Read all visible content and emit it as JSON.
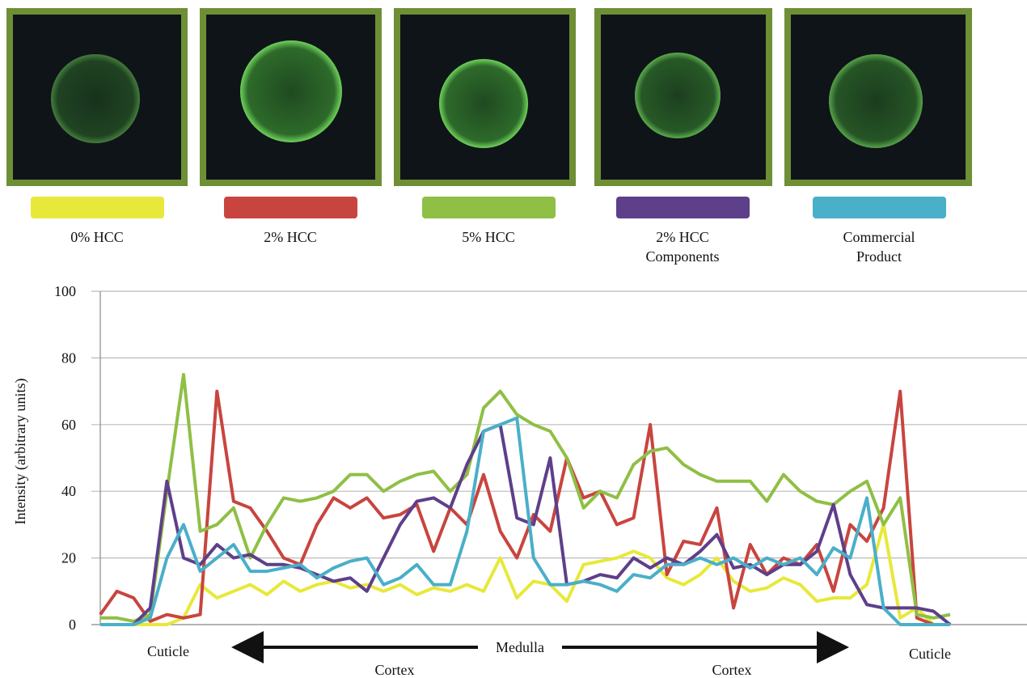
{
  "chart_data": {
    "type": "line",
    "y_label": "Intensity (arbitrary units)",
    "ylim": [
      0,
      100
    ],
    "yticks": [
      0,
      20,
      40,
      60,
      80,
      100
    ],
    "grid": true,
    "annotations": [
      "Cuticle",
      "Medulla",
      "Cortex",
      "Cortex",
      "Cuticle"
    ],
    "series": [
      {
        "name": "0% HCC",
        "color": "#e8e83a",
        "values": [
          0,
          0,
          0,
          0,
          0,
          2,
          12,
          8,
          10,
          12,
          9,
          13,
          10,
          12,
          13,
          11,
          12,
          10,
          12,
          9,
          11,
          10,
          12,
          10,
          20,
          8,
          13,
          12,
          7,
          18,
          19,
          20,
          22,
          20,
          14,
          12,
          15,
          20,
          13,
          10,
          11,
          14,
          12,
          7,
          8,
          8,
          12,
          30,
          2,
          5,
          0,
          0
        ]
      },
      {
        "name": "2% HCC",
        "color": "#c8453f",
        "values": [
          3,
          10,
          8,
          1,
          3,
          2,
          3,
          70,
          37,
          35,
          28,
          20,
          18,
          30,
          38,
          35,
          38,
          32,
          33,
          36,
          22,
          35,
          30,
          45,
          28,
          20,
          33,
          28,
          50,
          38,
          40,
          30,
          32,
          60,
          15,
          25,
          24,
          35,
          5,
          24,
          15,
          20,
          18,
          24,
          10,
          30,
          25,
          35,
          70,
          2,
          0,
          0
        ]
      },
      {
        "name": "5% HCC",
        "color": "#8fbf45",
        "values": [
          2,
          2,
          1,
          3,
          40,
          75,
          28,
          30,
          35,
          20,
          30,
          38,
          37,
          38,
          40,
          45,
          45,
          40,
          43,
          45,
          46,
          40,
          45,
          65,
          70,
          63,
          60,
          58,
          50,
          35,
          40,
          38,
          48,
          52,
          53,
          48,
          45,
          43,
          43,
          43,
          37,
          45,
          40,
          37,
          36,
          40,
          43,
          30,
          38,
          3,
          2,
          3
        ]
      },
      {
        "name": "2% HCC Components",
        "color": "#5e3f8a",
        "values": [
          0,
          0,
          0,
          5,
          43,
          20,
          18,
          24,
          20,
          21,
          18,
          18,
          17,
          15,
          13,
          14,
          10,
          20,
          30,
          37,
          38,
          35,
          48,
          58,
          60,
          32,
          30,
          50,
          12,
          13,
          15,
          14,
          20,
          17,
          20,
          18,
          22,
          27,
          17,
          18,
          15,
          18,
          18,
          22,
          36,
          15,
          6,
          5,
          5,
          5,
          4,
          0
        ]
      },
      {
        "name": "Commercial Product",
        "color": "#4aafc8",
        "values": [
          0,
          0,
          0,
          2,
          20,
          30,
          16,
          20,
          24,
          16,
          16,
          17,
          18,
          14,
          17,
          19,
          20,
          12,
          14,
          18,
          12,
          12,
          28,
          58,
          60,
          62,
          20,
          12,
          12,
          13,
          12,
          10,
          15,
          14,
          18,
          18,
          20,
          18,
          20,
          17,
          20,
          18,
          20,
          15,
          23,
          20,
          38,
          5,
          0,
          0,
          0,
          0
        ]
      }
    ]
  }
}
